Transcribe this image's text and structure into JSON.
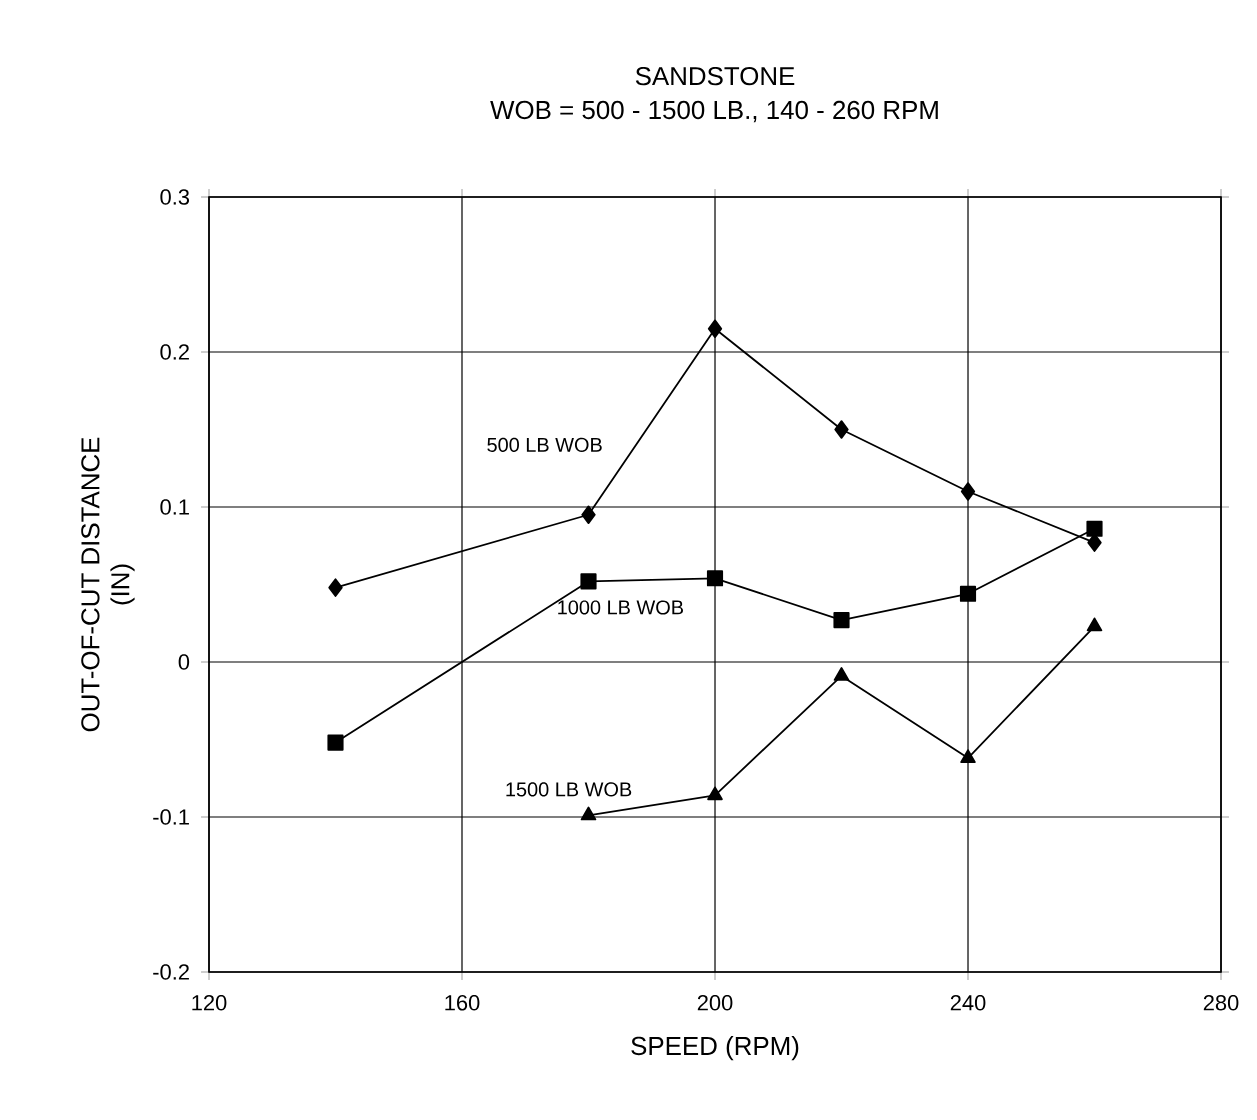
{
  "chart_data": {
    "type": "line",
    "title": "SANDSTONE",
    "subtitle": "WOB = 500 - 1500 LB., 140 - 260 RPM",
    "xlabel": "SPEED (RPM)",
    "ylabel": "OUT-OF-CUT DISTANCE (IN)",
    "xlim": [
      120,
      280
    ],
    "xticks": [
      120,
      160,
      200,
      240,
      280
    ],
    "ylim": [
      -0.2,
      0.3
    ],
    "yticks": [
      -0.2,
      -0.1,
      0,
      0.1,
      0.2,
      0.3
    ],
    "grid": true,
    "legend": false,
    "line_style": "solid",
    "series": [
      {
        "name": "500 LB WOB",
        "color": "#000000",
        "marker": "diamond",
        "x": [
          140,
          180,
          200,
          220,
          240,
          260
        ],
        "values": [
          0.048,
          0.095,
          0.215,
          0.15,
          0.11,
          0.077
        ]
      },
      {
        "name": "1000 LB WOB",
        "color": "#000000",
        "marker": "square",
        "x": [
          140,
          180,
          200,
          220,
          240,
          260
        ],
        "values": [
          -0.052,
          0.052,
          0.054,
          0.027,
          0.044,
          0.086
        ]
      },
      {
        "name": "1500 LB WOB",
        "color": "#000000",
        "marker": "triangle",
        "x": [
          180,
          200,
          220,
          240,
          260
        ],
        "values": [
          -0.099,
          -0.086,
          -0.009,
          -0.062,
          0.023
        ]
      }
    ]
  }
}
